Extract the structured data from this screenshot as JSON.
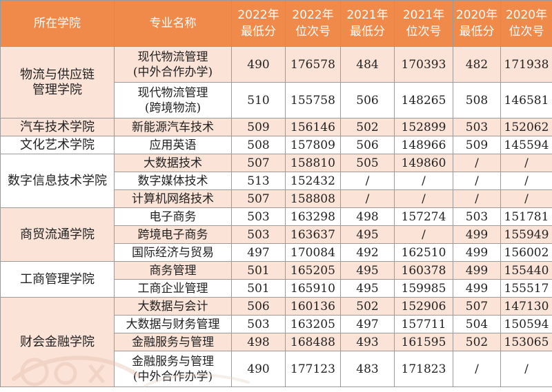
{
  "headers": {
    "college": "所在学院",
    "major": "专业名称",
    "score2022": [
      "2022年",
      "最低分"
    ],
    "rank2022": [
      "2022年",
      "位次号"
    ],
    "score2021": [
      "2021年",
      "最低分"
    ],
    "rank2021": [
      "2021年",
      "位次号"
    ],
    "score2020": [
      "2020年",
      "最低分"
    ],
    "rank2020": [
      "2020年",
      "位次号"
    ]
  },
  "colors": {
    "header_bg": "#f08a4b",
    "stripe": "#fbe3d7",
    "border": "#9a9a9a"
  },
  "colleges": [
    {
      "name": [
        "物流与供应链",
        "管理学院"
      ]
    },
    {
      "name": [
        "汽车技术学院"
      ]
    },
    {
      "name": [
        "文化艺术学院"
      ]
    },
    {
      "name": [
        "数字信息技术学院"
      ]
    },
    {
      "name": [
        "商贸流通学院"
      ]
    },
    {
      "name": [
        "工商管理学院"
      ]
    },
    {
      "name": [
        "财会金融学院"
      ]
    }
  ],
  "rows": [
    {
      "major": [
        "现代物流管理",
        "(中外合作办学)"
      ],
      "s22": "490",
      "r22": "176578",
      "s21": "484",
      "r21": "170393",
      "s20": "482",
      "r20": "171938"
    },
    {
      "major": [
        "现代物流管理",
        "(跨境物流)"
      ],
      "s22": "510",
      "r22": "155758",
      "s21": "506",
      "r21": "148265",
      "s20": "508",
      "r20": "146581"
    },
    {
      "major": [
        "新能源汽车技术"
      ],
      "s22": "509",
      "r22": "156146",
      "s21": "502",
      "r21": "152899",
      "s20": "503",
      "r20": "152062"
    },
    {
      "major": [
        "应用英语"
      ],
      "s22": "508",
      "r22": "157809",
      "s21": "506",
      "r21": "148966",
      "s20": "509",
      "r20": "145594"
    },
    {
      "major": [
        "大数据技术"
      ],
      "s22": "507",
      "r22": "158810",
      "s21": "505",
      "r21": "149860",
      "s20": "/",
      "r20": "/"
    },
    {
      "major": [
        "数字媒体技术"
      ],
      "s22": "513",
      "r22": "152432",
      "s21": "/",
      "r21": "/",
      "s20": "/",
      "r20": "/"
    },
    {
      "major": [
        "计算机网络技术"
      ],
      "s22": "507",
      "r22": "158808",
      "s21": "/",
      "r21": "/",
      "s20": "/",
      "r20": "/"
    },
    {
      "major": [
        "电子商务"
      ],
      "s22": "503",
      "r22": "163298",
      "s21": "498",
      "r21": "157274",
      "s20": "503",
      "r20": "151781"
    },
    {
      "major": [
        "跨境电子商务"
      ],
      "s22": "503",
      "r22": "163637",
      "s21": "495",
      "r21": "/",
      "s20": "499",
      "r20": "155949"
    },
    {
      "major": [
        "国际经济与贸易"
      ],
      "s22": "497",
      "r22": "170084",
      "s21": "492",
      "r21": "162510",
      "s20": "499",
      "r20": "156002"
    },
    {
      "major": [
        "商务管理"
      ],
      "s22": "501",
      "r22": "165205",
      "s21": "495",
      "r21": "160378",
      "s20": "499",
      "r20": "155440"
    },
    {
      "major": [
        "工商企业管理"
      ],
      "s22": "501",
      "r22": "165910",
      "s21": "495",
      "r21": "159985",
      "s20": "499",
      "r20": "155517"
    },
    {
      "major": [
        "大数据与会计"
      ],
      "s22": "506",
      "r22": "160136",
      "s21": "502",
      "r21": "152906",
      "s20": "507",
      "r20": "147130"
    },
    {
      "major": [
        "大数据与财务管理"
      ],
      "s22": "503",
      "r22": "163205",
      "s21": "497",
      "r21": "157711",
      "s20": "504",
      "r20": "150594"
    },
    {
      "major": [
        "金融服务与管理"
      ],
      "s22": "498",
      "r22": "168488",
      "s21": "493",
      "r21": "161595",
      "s20": "502",
      "r20": "153065"
    },
    {
      "major": [
        "金融服务与管理",
        "(中外合作办学)"
      ],
      "s22": "490",
      "r22": "177123",
      "s21": "483",
      "r21": "171823",
      "s20": "/",
      "r20": "/"
    }
  ]
}
